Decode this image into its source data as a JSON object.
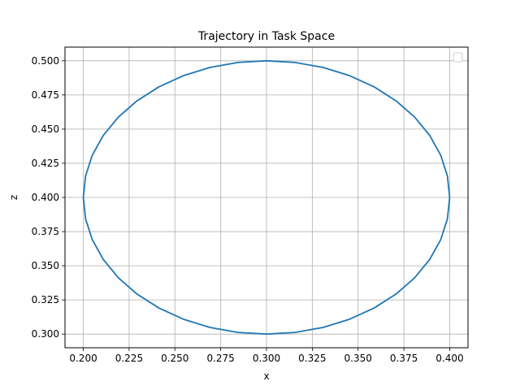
{
  "chart_data": {
    "type": "line",
    "title": "Trajectory in Task Space",
    "xlabel": "x",
    "ylabel": "z",
    "xlim": [
      0.19,
      0.41
    ],
    "ylim": [
      0.29,
      0.51
    ],
    "xticks": [
      0.2,
      0.225,
      0.25,
      0.275,
      0.3,
      0.325,
      0.35,
      0.375,
      0.4
    ],
    "xtick_labels": [
      "0.200",
      "0.225",
      "0.250",
      "0.275",
      "0.300",
      "0.325",
      "0.350",
      "0.375",
      "0.400"
    ],
    "yticks": [
      0.3,
      0.325,
      0.35,
      0.375,
      0.4,
      0.425,
      0.45,
      0.475,
      0.5
    ],
    "ytick_labels": [
      "0.300",
      "0.325",
      "0.350",
      "0.375",
      "0.400",
      "0.425",
      "0.450",
      "0.475",
      "0.500"
    ],
    "grid": true,
    "legend": "top-right (empty)",
    "series": [
      {
        "color": "#1f77b4",
        "x": [
          0.4,
          0.39877,
          0.39511,
          0.3891,
          0.3809,
          0.37071,
          0.35878,
          0.3454,
          0.3309,
          0.31564,
          0.3,
          0.28436,
          0.2691,
          0.2546,
          0.24122,
          0.22929,
          0.2191,
          0.2109,
          0.20489,
          0.20123,
          0.2,
          0.20123,
          0.20489,
          0.2109,
          0.2191,
          0.22929,
          0.24122,
          0.2546,
          0.2691,
          0.28436,
          0.3,
          0.31564,
          0.3309,
          0.3454,
          0.35878,
          0.37071,
          0.3809,
          0.3891,
          0.39511,
          0.39877,
          0.4
        ],
        "y": [
          0.4,
          0.41564,
          0.4309,
          0.4454,
          0.45878,
          0.47071,
          0.4809,
          0.4891,
          0.49511,
          0.49877,
          0.5,
          0.49877,
          0.49511,
          0.4891,
          0.4809,
          0.47071,
          0.45878,
          0.4454,
          0.4309,
          0.41564,
          0.4,
          0.38436,
          0.3691,
          0.3546,
          0.34122,
          0.32929,
          0.3191,
          0.3109,
          0.30489,
          0.30123,
          0.3,
          0.30123,
          0.30489,
          0.3109,
          0.3191,
          0.32929,
          0.34122,
          0.3546,
          0.3691,
          0.38436,
          0.4
        ]
      }
    ]
  }
}
